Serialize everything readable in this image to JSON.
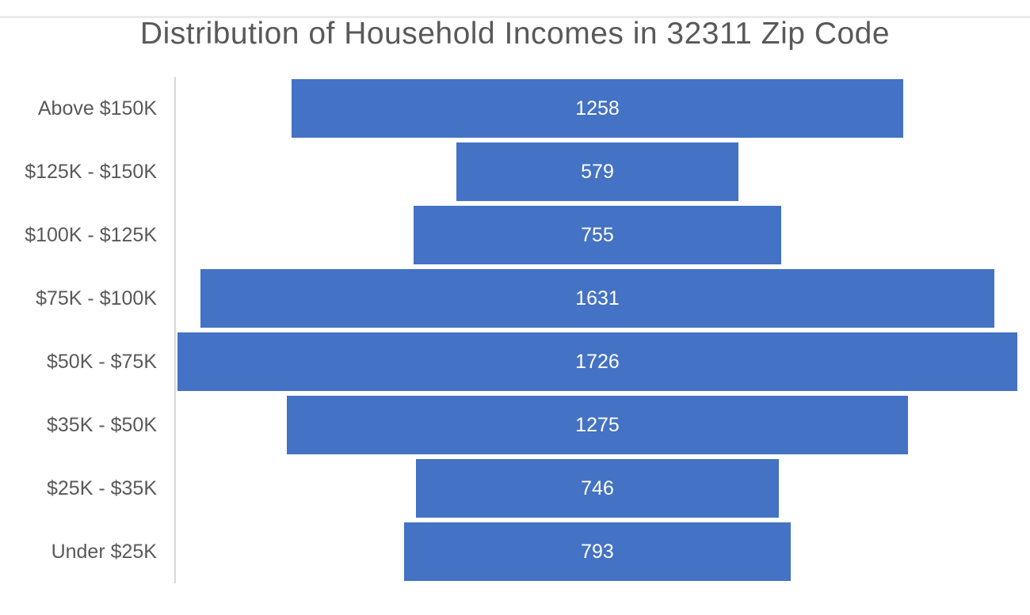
{
  "window": {
    "top_edge_color": "#EBEBEB"
  },
  "chart_data": {
    "type": "bar",
    "subtype": "centered-horizontal-funnel",
    "orientation": "horizontal",
    "title": "Distribution of Household Incomes in 32311 Zip Code",
    "categories": [
      "Above $150K",
      "$125K - $150K",
      "$100K - $125K",
      "$75K - $100K",
      "$50K - $75K",
      "$35K - $50K",
      "$25K - $35K",
      "Under $25K"
    ],
    "values": [
      1258,
      579,
      755,
      1631,
      1726,
      1275,
      746,
      793
    ],
    "axis_max": 1732,
    "bar_color": "#4472C4",
    "value_label_color": "#FFFFFF",
    "category_label_color": "#595959",
    "title_color": "#595959",
    "axis_line_color": "#D9D9D9",
    "data_labels": "inside-center",
    "legend": "none",
    "grid": false
  }
}
